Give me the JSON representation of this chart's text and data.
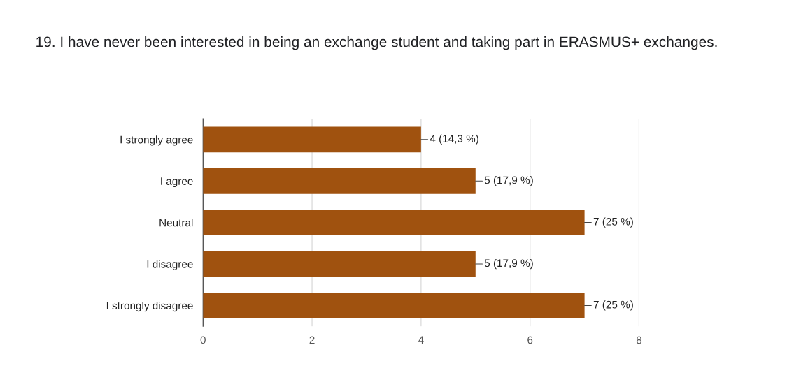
{
  "chart_data": {
    "type": "bar",
    "orientation": "horizontal",
    "title": "19. I have never been interested in being an exchange student and taking part in ERASMUS+ exchanges.",
    "categories": [
      "I strongly agree",
      "I agree",
      "Neutral",
      "I disagree",
      "I strongly disagree"
    ],
    "values": [
      4,
      5,
      7,
      5,
      7
    ],
    "value_labels": [
      "4 (14,3 %)",
      "5 (17,9 %)",
      "7 (25 %)",
      "5 (17,9 %)",
      "7 (25 %)"
    ],
    "color": "#a0520f",
    "xlim": [
      0,
      8
    ],
    "xticks": [
      0,
      2,
      4,
      6,
      8
    ],
    "grid": "x",
    "legend": false
  }
}
